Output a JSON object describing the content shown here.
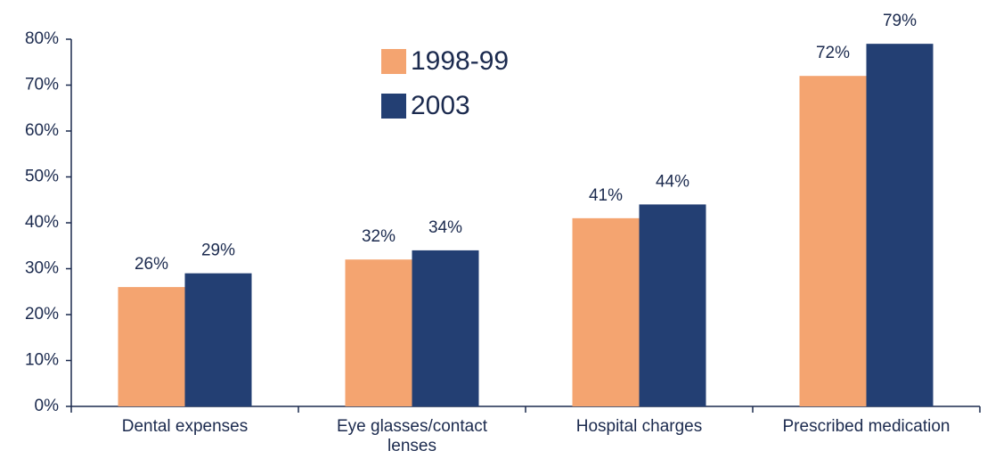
{
  "chart_data": {
    "type": "bar",
    "categories": [
      "Dental expenses",
      "Eye glasses/contact lenses",
      "Hospital charges",
      "Prescribed medication"
    ],
    "series": [
      {
        "name": "1998-99",
        "color": "#f4a470",
        "values": [
          26,
          32,
          41,
          72
        ],
        "value_labels": [
          "26%",
          "32%",
          "41%",
          "72%"
        ]
      },
      {
        "name": "2003",
        "color": "#233f73",
        "values": [
          29,
          34,
          44,
          79
        ],
        "value_labels": [
          "29%",
          "34%",
          "44%",
          "79%"
        ]
      }
    ],
    "ylim": [
      0,
      80
    ],
    "yticks": [
      {
        "value": 0,
        "label": "0%"
      },
      {
        "value": 10,
        "label": "10%"
      },
      {
        "value": 20,
        "label": "20%"
      },
      {
        "value": 30,
        "label": "30%"
      },
      {
        "value": 40,
        "label": "40%"
      },
      {
        "value": 50,
        "label": "50%"
      },
      {
        "value": 60,
        "label": "60%"
      },
      {
        "value": 70,
        "label": "70%"
      },
      {
        "value": 80,
        "label": "80%"
      }
    ],
    "legend": "top"
  }
}
